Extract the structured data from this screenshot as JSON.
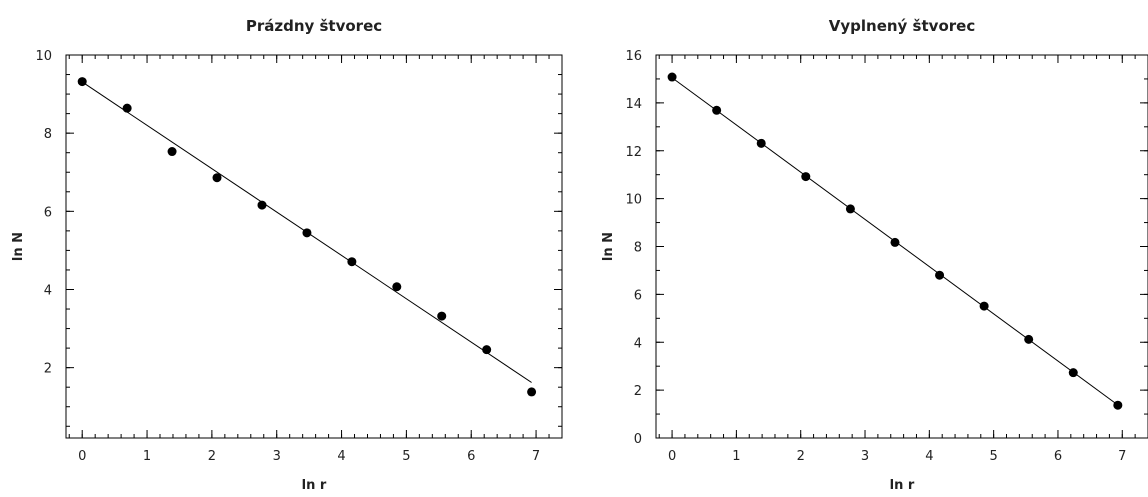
{
  "chart_data": [
    {
      "type": "scatter",
      "title": "Prázdny štvorec",
      "xlabel": "ln r",
      "ylabel": "ln N",
      "xlim": [
        -0.25,
        7.4
      ],
      "ylim": [
        0.2,
        10
      ],
      "xticks": [
        0,
        1,
        2,
        3,
        4,
        5,
        6,
        7
      ],
      "yticks": [
        2,
        4,
        6,
        8,
        10
      ],
      "x_minor_step": 0.2,
      "y_minor_step": 0.5,
      "grid": false,
      "series": [
        {
          "x": [
            0,
            0.693,
            1.386,
            2.079,
            2.773,
            3.466,
            4.159,
            4.852,
            5.545,
            6.238,
            6.931
          ],
          "y": [
            9.32,
            8.64,
            7.53,
            6.86,
            6.16,
            5.45,
            4.71,
            4.07,
            3.32,
            2.46,
            1.38
          ]
        }
      ],
      "fit_line": {
        "x": [
          0,
          6.931
        ],
        "y": [
          9.31,
          1.62
        ]
      }
    },
    {
      "type": "scatter",
      "title": "Vyplnený štvorec",
      "xlabel": "ln r",
      "ylabel": "ln N",
      "xlim": [
        -0.25,
        7.4
      ],
      "ylim": [
        0,
        16
      ],
      "xticks": [
        0,
        1,
        2,
        3,
        4,
        5,
        6,
        7
      ],
      "yticks": [
        0,
        2,
        4,
        6,
        8,
        10,
        12,
        14,
        16
      ],
      "x_minor_step": 0.2,
      "y_minor_step": 1,
      "grid": false,
      "series": [
        {
          "x": [
            0,
            0.693,
            1.386,
            2.079,
            2.773,
            3.466,
            4.159,
            4.852,
            5.545,
            6.238,
            6.931
          ],
          "y": [
            15.08,
            13.69,
            12.31,
            10.92,
            9.57,
            8.17,
            6.8,
            5.51,
            4.12,
            2.73,
            1.37
          ]
        }
      ],
      "fit_line": {
        "x": [
          0,
          6.931
        ],
        "y": [
          15.05,
          1.38
        ]
      }
    }
  ]
}
